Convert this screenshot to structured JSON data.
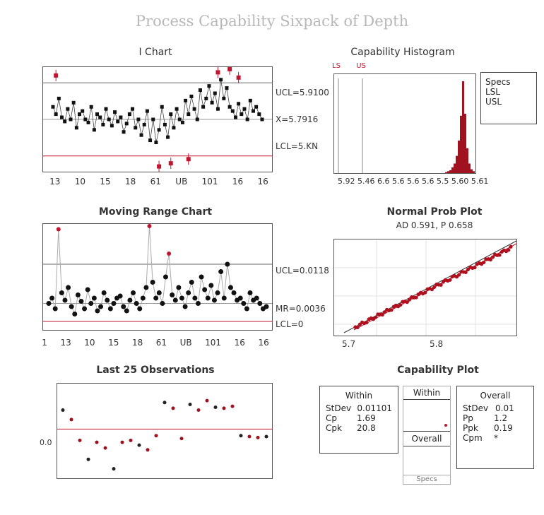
{
  "title": "Process Capability Sixpack of Depth",
  "i_chart": {
    "title": "I Chart",
    "ucl_label": "UCL=5.9100",
    "center_label": "X=5.7916",
    "lcl_label": "LCL=5.KN",
    "xticks": [
      "13",
      "10",
      "15",
      "18",
      "61",
      "UB",
      "101",
      "16",
      "16"
    ],
    "colors": {
      "point": "#111111",
      "out": "#c0152f",
      "limit": "#c0152f"
    },
    "chart_data": {
      "type": "scatter",
      "ucl": 0.85,
      "center": 0.5,
      "lcl": 0.15,
      "values": [
        0.62,
        0.55,
        0.7,
        0.52,
        0.48,
        0.6,
        0.5,
        0.66,
        0.42,
        0.55,
        0.58,
        0.5,
        0.47,
        0.62,
        0.4,
        0.55,
        0.52,
        0.45,
        0.6,
        0.5,
        0.44,
        0.57,
        0.48,
        0.52,
        0.38,
        0.46,
        0.55,
        0.6,
        0.42,
        0.5,
        0.35,
        0.45,
        0.58,
        0.3,
        0.5,
        0.28,
        0.4,
        0.62,
        0.45,
        0.33,
        0.55,
        0.42,
        0.6,
        0.5,
        0.47,
        0.68,
        0.55,
        0.72,
        0.6,
        0.5,
        0.78,
        0.62,
        0.7,
        0.82,
        0.66,
        0.75,
        0.6,
        0.88,
        0.7,
        0.8,
        0.62,
        0.58,
        0.52,
        0.65,
        0.55,
        0.6,
        0.5,
        0.68,
        0.58,
        0.62,
        0.55,
        0.5
      ],
      "out": [
        {
          "i": 1,
          "v": 0.92
        },
        {
          "i": 36,
          "v": 0.05
        },
        {
          "i": 40,
          "v": 0.08
        },
        {
          "i": 46,
          "v": 0.12
        },
        {
          "i": 56,
          "v": 0.95
        },
        {
          "i": 60,
          "v": 0.98
        },
        {
          "i": 63,
          "v": 0.9
        }
      ]
    }
  },
  "histogram": {
    "title": "Capability Histogram",
    "top_labels": [
      "LS",
      "US"
    ],
    "xticks": "5.92 5.46 6.6 5.6 5.6 5.6 5.5 5.60 5.61",
    "legend": [
      "Specs",
      "LSL",
      "USL"
    ],
    "chart_data": {
      "type": "bar",
      "values": [
        1,
        2,
        3,
        6,
        10,
        18,
        34,
        60,
        96,
        62,
        26,
        10,
        4,
        2
      ]
    }
  },
  "mr_chart": {
    "title": "Moving Range Chart",
    "ucl_label": "UCL=0.0118",
    "center_label": "MR=0.0036",
    "lcl_label": "LCL=0",
    "xticks": [
      "1",
      "13",
      "10",
      "15",
      "18",
      "61",
      "UB",
      "101",
      "16",
      "16"
    ],
    "chart_data": {
      "type": "line",
      "ucl": 0.62,
      "center": 0.25,
      "lcl": 0.08,
      "values": [
        0.25,
        0.3,
        0.2,
        0.95,
        0.35,
        0.28,
        0.4,
        0.22,
        0.15,
        0.33,
        0.27,
        0.2,
        0.38,
        0.25,
        0.3,
        0.18,
        0.22,
        0.35,
        0.28,
        0.2,
        0.25,
        0.3,
        0.32,
        0.22,
        0.18,
        0.28,
        0.35,
        0.25,
        0.2,
        0.3,
        0.4,
        0.98,
        0.45,
        0.3,
        0.35,
        0.25,
        0.5,
        0.72,
        0.33,
        0.28,
        0.4,
        0.3,
        0.22,
        0.35,
        0.45,
        0.3,
        0.25,
        0.5,
        0.38,
        0.3,
        0.42,
        0.28,
        0.35,
        0.55,
        0.3,
        0.62,
        0.4,
        0.35,
        0.28,
        0.3,
        0.25,
        0.2,
        0.35,
        0.28,
        0.3,
        0.25,
        0.2,
        0.22
      ]
    }
  },
  "prob_plot": {
    "title": "Normal Prob Plot",
    "subtitle": "AD 0.591, P 0.658",
    "xticks": [
      "5.7",
      "5.8"
    ]
  },
  "last25": {
    "title": "Last 25 Observations",
    "left_labels": "0.0",
    "chart_data": {
      "type": "scatter",
      "center": 0.52,
      "values": [
        0.72,
        0.62,
        0.4,
        0.2,
        0.38,
        0.32,
        0.1,
        0.38,
        0.4,
        0.35,
        0.3,
        0.45,
        0.8,
        0.74,
        0.42,
        0.78,
        0.72,
        0.82,
        0.75,
        0.74,
        0.76,
        0.45,
        0.44,
        0.43,
        0.44
      ]
    }
  },
  "cap_plot": {
    "title": "Capability Plot",
    "within": {
      "header": "Within",
      "rows": [
        [
          "StDev",
          "0.01101"
        ],
        [
          "Cp",
          "1.69"
        ],
        [
          "Cpk",
          "20.8"
        ]
      ]
    },
    "mid": {
      "top": "Within",
      "label": "Overall",
      "bottom": "Specs"
    },
    "overall": {
      "header": "Overall",
      "rows": [
        [
          "StDev",
          "0.01"
        ],
        [
          "Pp",
          "1.2"
        ],
        [
          "Ppk",
          "0.19"
        ],
        [
          "Cpm",
          "*"
        ]
      ]
    }
  },
  "legend_side": {
    "rows": [
      "Specs",
      "LSL",
      "USL"
    ]
  }
}
